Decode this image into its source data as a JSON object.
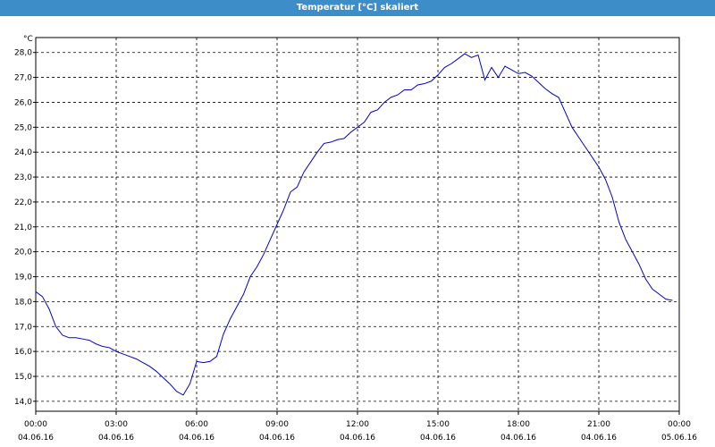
{
  "chart_data": {
    "type": "line",
    "title": "Temperatur [°C] skaliert",
    "y_label": "°C",
    "x": [
      0,
      0.25,
      0.5,
      0.75,
      1,
      1.25,
      1.5,
      1.75,
      2,
      2.25,
      2.5,
      2.75,
      3,
      3.25,
      3.5,
      3.75,
      4,
      4.25,
      4.5,
      4.75,
      5,
      5.25,
      5.5,
      5.75,
      6,
      6.25,
      6.5,
      6.75,
      7,
      7.25,
      7.5,
      7.75,
      8,
      8.25,
      8.5,
      8.75,
      9,
      9.25,
      9.5,
      9.75,
      10,
      10.25,
      10.5,
      10.75,
      11,
      11.25,
      11.5,
      11.75,
      12,
      12.25,
      12.5,
      12.75,
      13,
      13.25,
      13.5,
      13.75,
      14,
      14.25,
      14.5,
      14.75,
      15,
      15.25,
      15.5,
      15.75,
      16,
      16.25,
      16.5,
      16.75,
      17,
      17.25,
      17.5,
      17.75,
      18,
      18.25,
      18.5,
      18.75,
      19,
      19.25,
      19.5,
      19.75,
      20,
      20.25,
      20.5,
      20.75,
      21,
      21.25,
      21.5,
      21.75,
      22,
      22.25,
      22.5,
      22.75,
      23,
      23.25,
      23.5,
      23.75
    ],
    "series": [
      {
        "name": "Temperatur",
        "color": "#0000cc",
        "values": [
          18.4,
          18.2,
          17.7,
          17.0,
          16.65,
          16.55,
          16.55,
          16.5,
          16.45,
          16.3,
          16.2,
          16.15,
          16.0,
          15.9,
          15.8,
          15.7,
          15.55,
          15.4,
          15.2,
          14.95,
          14.7,
          14.4,
          14.25,
          14.7,
          15.6,
          15.55,
          15.6,
          15.8,
          16.7,
          17.3,
          17.8,
          18.3,
          19.0,
          19.4,
          19.9,
          20.5,
          21.1,
          21.7,
          22.4,
          22.6,
          23.2,
          23.6,
          24.0,
          24.35,
          24.4,
          24.5,
          24.55,
          24.8,
          25.0,
          25.2,
          25.6,
          25.7,
          26.0,
          26.2,
          26.3,
          26.5,
          26.5,
          26.7,
          26.75,
          26.85,
          27.1,
          27.4,
          27.55,
          27.75,
          27.95,
          27.8,
          27.9,
          26.9,
          27.4,
          27.0,
          27.45,
          27.3,
          27.15,
          27.2,
          27.05,
          26.8,
          26.55,
          26.35,
          26.2,
          25.6,
          25.0,
          24.6,
          24.2,
          23.8,
          23.4,
          22.9,
          22.2,
          21.2,
          20.5,
          20.0,
          19.5,
          18.9,
          18.5,
          18.3,
          18.1,
          18.05
        ]
      }
    ],
    "xlim": [
      0,
      24
    ],
    "ylim": [
      13.6,
      28.6
    ],
    "xticks": [
      {
        "value": 0,
        "label": "00:00"
      },
      {
        "value": 3,
        "label": "03:00"
      },
      {
        "value": 6,
        "label": "06:00"
      },
      {
        "value": 9,
        "label": "09:00"
      },
      {
        "value": 12,
        "label": "12:00"
      },
      {
        "value": 15,
        "label": "15:00"
      },
      {
        "value": 18,
        "label": "18:00"
      },
      {
        "value": 21,
        "label": "21:00"
      },
      {
        "value": 24,
        "label": "00:00"
      }
    ],
    "xtick_dates": [
      "04.06.16",
      "04.06.16",
      "04.06.16",
      "04.06.16",
      "04.06.16",
      "04.06.16",
      "04.06.16",
      "04.06.16",
      "05.06.16"
    ],
    "yticks": [
      {
        "value": 14,
        "label": "14,0"
      },
      {
        "value": 15,
        "label": "15,0"
      },
      {
        "value": 16,
        "label": "16,0"
      },
      {
        "value": 17,
        "label": "17,0"
      },
      {
        "value": 18,
        "label": "18,0"
      },
      {
        "value": 19,
        "label": "19,0"
      },
      {
        "value": 20,
        "label": "20,0"
      },
      {
        "value": 21,
        "label": "21,0"
      },
      {
        "value": 22,
        "label": "22,0"
      },
      {
        "value": 23,
        "label": "23,0"
      },
      {
        "value": 24,
        "label": "24,0"
      },
      {
        "value": 25,
        "label": "25,0"
      },
      {
        "value": 26,
        "label": "26,0"
      },
      {
        "value": 27,
        "label": "27,0"
      },
      {
        "value": 28,
        "label": "28,0"
      }
    ],
    "grid": true
  }
}
